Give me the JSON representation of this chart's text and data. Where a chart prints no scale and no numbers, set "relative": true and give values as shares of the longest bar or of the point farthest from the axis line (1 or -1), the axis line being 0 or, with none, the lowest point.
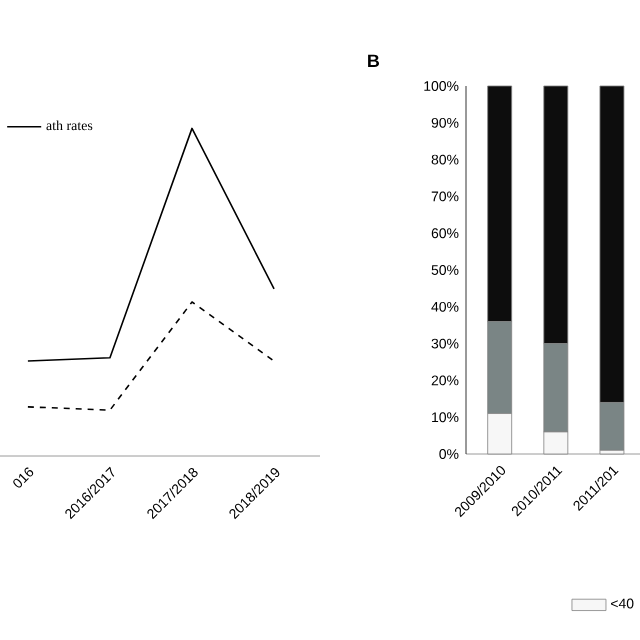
{
  "chart_data": [
    {
      "type": "line",
      "relative": true,
      "categories": [
        "016",
        "2016/2017",
        "2017/2018",
        "2018/2019"
      ],
      "legend": "top left",
      "series": [
        {
          "name": "ath rates",
          "color": "#000000",
          "line_style": "solid",
          "values": [
            0.29,
            0.3,
            1,
            0.51
          ]
        },
        {
          "color": "#000000",
          "line_style": "dashed",
          "values": [
            0.15,
            0.14,
            0.47,
            0.29
          ]
        }
      ]
    },
    {
      "type": "bar",
      "stacked": true,
      "title": "B",
      "categories": [
        "2009/2010",
        "2010/2011",
        "2011/201"
      ],
      "legend": "bottom",
      "ylim": [
        0,
        100
      ],
      "yticks": [
        {
          "value": 0,
          "label": "0%"
        },
        {
          "value": 10,
          "label": "10%"
        },
        {
          "value": 20,
          "label": "20%"
        },
        {
          "value": 30,
          "label": "30%"
        },
        {
          "value": 40,
          "label": "40%"
        },
        {
          "value": 50,
          "label": "50%"
        },
        {
          "value": 60,
          "label": "60%"
        },
        {
          "value": 70,
          "label": "70%"
        },
        {
          "value": 80,
          "label": "80%"
        },
        {
          "value": 90,
          "label": "90%"
        },
        {
          "value": 100,
          "label": "100%"
        }
      ],
      "series": [
        {
          "name": "<40",
          "color": "#f7f7f7",
          "values": [
            11,
            6,
            1
          ]
        },
        {
          "color": "#7a8585",
          "values": [
            25,
            24,
            13
          ]
        },
        {
          "color": "#0d0d0d",
          "values": [
            64,
            70,
            86
          ]
        }
      ]
    }
  ]
}
